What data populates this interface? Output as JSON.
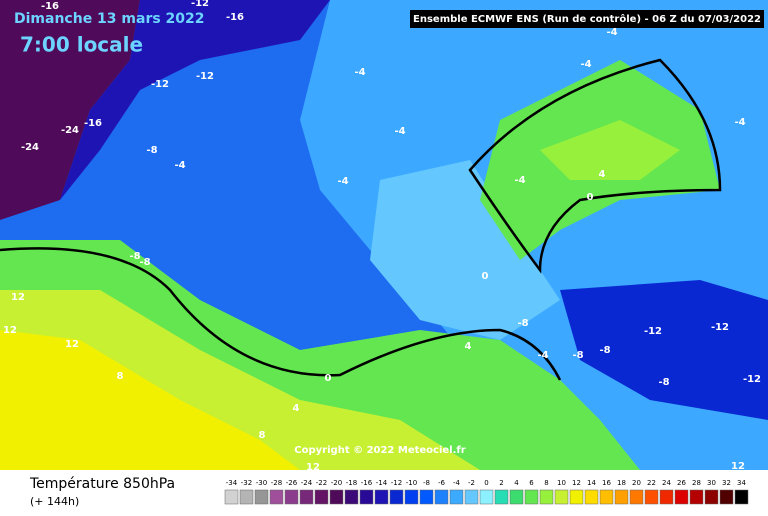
{
  "header": {
    "date": "Dimanche 13 mars 2022",
    "time": "7:00 locale",
    "model": "Ensemble ECMWF ENS  (Run de contrôle)  -  06 Z du 07/03/2022"
  },
  "copyright": "Copyright © 2022 Meteociel.fr",
  "footer": {
    "title": "Température 850hPa",
    "lead": "(+ 144h)"
  },
  "contour_labels": [
    "-16",
    "-12",
    "-16",
    "-12",
    "-12",
    "-24",
    "-24",
    "-16",
    "-8",
    "-4",
    "-4",
    "-4",
    "-4",
    "-4",
    "-8",
    "-8",
    "12",
    "12",
    "12",
    "8",
    "0",
    "4",
    "4",
    "8",
    "-12",
    "-12",
    "-12",
    "-8",
    "-8",
    "-8",
    "0",
    "0",
    "4",
    "-4",
    "-4",
    "-4",
    "12",
    "12",
    "-8",
    "-4"
  ],
  "legend": {
    "labels": [
      -34,
      -32,
      -30,
      -28,
      -26,
      -24,
      -22,
      -20,
      -18,
      -16,
      -14,
      -12,
      -10,
      -8,
      -6,
      -4,
      -2,
      0,
      2,
      4,
      6,
      8,
      10,
      12,
      14,
      16,
      18,
      20,
      22,
      24,
      26,
      28,
      30,
      32,
      34
    ],
    "colors": [
      "#d2d2d2",
      "#b4b4b4",
      "#969696",
      "#a0509b",
      "#8c3c8c",
      "#782878",
      "#641464",
      "#500a5a",
      "#3c0a78",
      "#280a96",
      "#1e14b4",
      "#0a28d2",
      "#0040f0",
      "#005aff",
      "#1e82ff",
      "#3caaff",
      "#64c8ff",
      "#8cf0ff",
      "#28dcb4",
      "#3cdc6e",
      "#64e650",
      "#96f03c",
      "#c8f032",
      "#f0f000",
      "#ffdc00",
      "#ffbe00",
      "#ffa000",
      "#ff7800",
      "#ff5000",
      "#f02800",
      "#dc0000",
      "#b40000",
      "#8c0000",
      "#500000",
      "#000000"
    ]
  }
}
